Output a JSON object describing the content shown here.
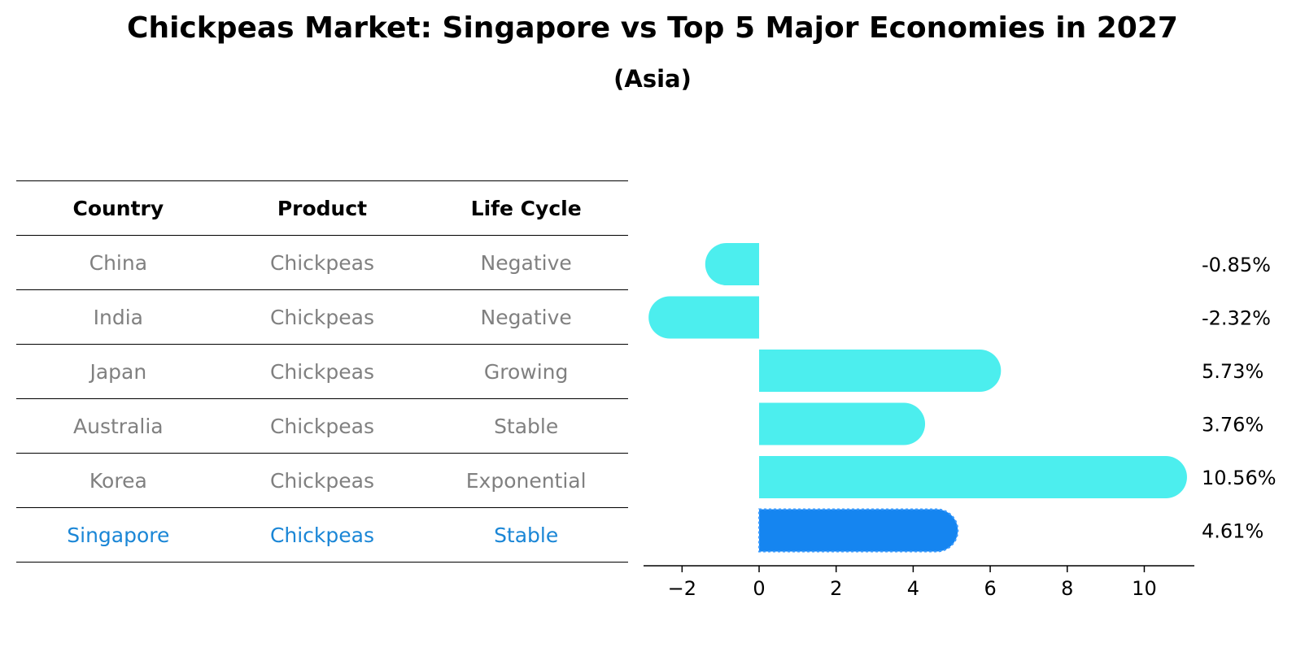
{
  "title": "Chickpeas Market: Singapore vs Top 5 Major Economies in 2027",
  "subtitle": "(Asia)",
  "table": {
    "headers": [
      "Country",
      "Product",
      "Life Cycle"
    ],
    "rows": [
      {
        "country": "China",
        "product": "Chickpeas",
        "life_cycle": "Negative"
      },
      {
        "country": "India",
        "product": "Chickpeas",
        "life_cycle": "Negative"
      },
      {
        "country": "Japan",
        "product": "Chickpeas",
        "life_cycle": "Growing"
      },
      {
        "country": "Australia",
        "product": "Chickpeas",
        "life_cycle": "Stable"
      },
      {
        "country": "Korea",
        "product": "Chickpeas",
        "life_cycle": "Exponential"
      },
      {
        "country": "Singapore",
        "product": "Chickpeas",
        "life_cycle": "Stable"
      }
    ],
    "highlight_country": "Singapore"
  },
  "chart_data": {
    "type": "bar",
    "orientation": "horizontal",
    "title": "Chickpeas Market: Singapore vs Top 5 Major Economies in 2027",
    "subtitle": "(Asia)",
    "xlabel": "",
    "ylabel": "",
    "categories": [
      "China",
      "India",
      "Japan",
      "Australia",
      "Korea",
      "Singapore"
    ],
    "values": [
      -0.85,
      -2.32,
      5.73,
      3.76,
      10.56,
      4.61
    ],
    "value_labels": [
      "-0.85%",
      "-2.32%",
      "5.73%",
      "3.76%",
      "10.56%",
      "4.61%"
    ],
    "xlim": [
      -3.0,
      11.3
    ],
    "xticks": [
      -2,
      0,
      2,
      4,
      6,
      8,
      10
    ],
    "xtick_labels": [
      "−2",
      "0",
      "2",
      "4",
      "6",
      "8",
      "10"
    ],
    "grid": false,
    "colors": {
      "default": "#4ceeee",
      "highlight": "#1585f0"
    },
    "highlight_category": "Singapore"
  }
}
